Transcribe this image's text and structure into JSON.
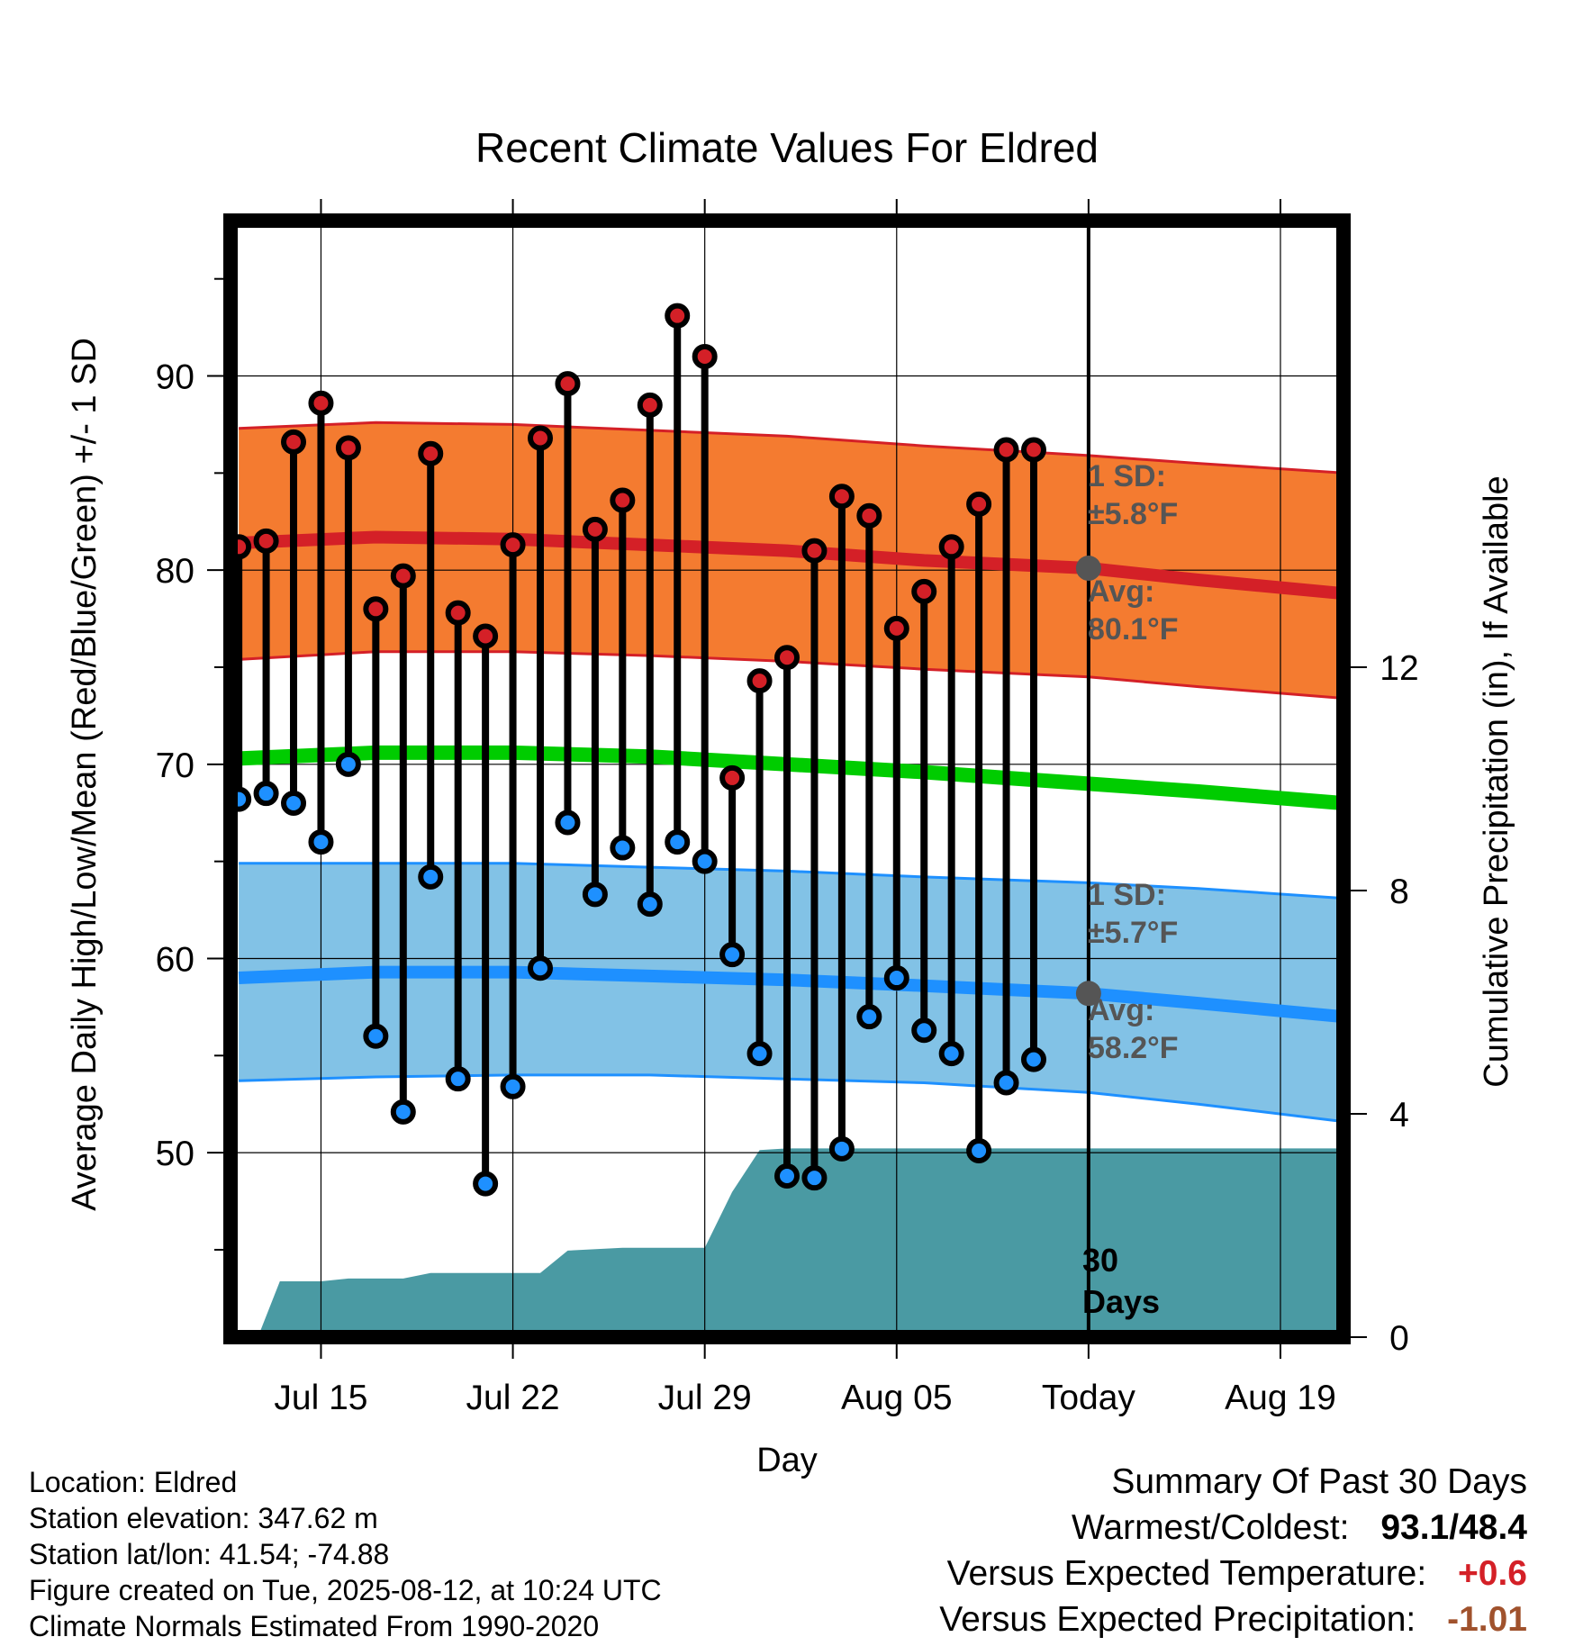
{
  "colors": {
    "high_band": "#f47b30",
    "high_line": "#d42027",
    "low_band": "#82c2e6",
    "low_line": "#1e90ff",
    "mean_line": "#00cc00",
    "precip_fill": "#4a9aa3",
    "high_dot": "#d42027",
    "low_dot": "#1e90ff",
    "avg_marker": "#555555",
    "annotation_text": "#555555",
    "positive_temp": "#d42027",
    "negative_precip": "#a0522d"
  },
  "chart_data": {
    "type": "line",
    "title": "Recent Climate Values For Eldred",
    "xlabel": "Day",
    "ylabel": "Average Daily High/Low/Mean (Red/Blue/Green) +/- 1 SD",
    "y2label": "Cumulative Precipitation (in), If Available",
    "x_ticks": [
      {
        "label": "Jul 15",
        "day": 3
      },
      {
        "label": "Jul 22",
        "day": 10
      },
      {
        "label": "Jul 29",
        "day": 17
      },
      {
        "label": "Aug 05",
        "day": 24
      },
      {
        "label": "Today",
        "day": 31
      },
      {
        "label": "Aug 19",
        "day": 38
      }
    ],
    "xlim": [
      -0.3,
      40.3
    ],
    "ylim": [
      40.5,
      98
    ],
    "y_ticks": [
      50,
      60,
      70,
      80,
      90
    ],
    "y2lim": [
      0,
      20
    ],
    "y2_ticks": [
      0,
      4,
      8,
      12
    ],
    "grid": true,
    "today_day": 31,
    "days": [
      0,
      1,
      2,
      3,
      4,
      5,
      6,
      7,
      8,
      9,
      10,
      11,
      12,
      13,
      14,
      15,
      16,
      17,
      18,
      19,
      20,
      21,
      22,
      23,
      24,
      25,
      26,
      27,
      28,
      29,
      30
    ],
    "highs": [
      81.2,
      81.5,
      86.6,
      88.6,
      86.3,
      78.0,
      79.7,
      86.0,
      77.8,
      76.6,
      81.3,
      86.8,
      89.6,
      82.1,
      83.6,
      88.5,
      93.1,
      91.0,
      69.3,
      74.3,
      75.5,
      81.0,
      83.8,
      82.8,
      77.0,
      78.9,
      81.2,
      83.4,
      86.2,
      86.2,
      null
    ],
    "lows": [
      68.2,
      68.5,
      68.0,
      66.0,
      70.0,
      56.0,
      52.1,
      64.2,
      53.8,
      48.4,
      53.4,
      59.5,
      67.0,
      63.3,
      65.7,
      62.8,
      66.0,
      65.0,
      60.2,
      55.1,
      48.8,
      48.7,
      50.2,
      57.0,
      59.0,
      56.3,
      55.1,
      50.1,
      53.6,
      54.8,
      null
    ],
    "normals": {
      "high_avg": [
        [
          0,
          81.4
        ],
        [
          5,
          81.7
        ],
        [
          10,
          81.6
        ],
        [
          15,
          81.3
        ],
        [
          20,
          81.0
        ],
        [
          25,
          80.5
        ],
        [
          31,
          80.1
        ],
        [
          35,
          79.5
        ],
        [
          40.3,
          78.8
        ]
      ],
      "high_upper": [
        [
          0,
          87.3
        ],
        [
          5,
          87.6
        ],
        [
          10,
          87.5
        ],
        [
          15,
          87.2
        ],
        [
          20,
          86.9
        ],
        [
          25,
          86.4
        ],
        [
          31,
          85.9
        ],
        [
          35,
          85.5
        ],
        [
          40.3,
          85.0
        ]
      ],
      "high_lower": [
        [
          0,
          75.4
        ],
        [
          5,
          75.8
        ],
        [
          10,
          75.8
        ],
        [
          15,
          75.6
        ],
        [
          20,
          75.3
        ],
        [
          25,
          74.9
        ],
        [
          31,
          74.5
        ],
        [
          35,
          74.0
        ],
        [
          40.3,
          73.4
        ]
      ],
      "mean": [
        [
          0,
          70.3
        ],
        [
          5,
          70.6
        ],
        [
          10,
          70.6
        ],
        [
          15,
          70.4
        ],
        [
          20,
          70.0
        ],
        [
          25,
          69.6
        ],
        [
          31,
          69.0
        ],
        [
          35,
          68.6
        ],
        [
          40.3,
          68.0
        ]
      ],
      "low_avg": [
        [
          0,
          59.0
        ],
        [
          5,
          59.3
        ],
        [
          10,
          59.3
        ],
        [
          15,
          59.1
        ],
        [
          20,
          58.9
        ],
        [
          25,
          58.6
        ],
        [
          31,
          58.2
        ],
        [
          35,
          57.7
        ],
        [
          40.3,
          57.0
        ]
      ],
      "low_upper": [
        [
          0,
          64.9
        ],
        [
          5,
          64.9
        ],
        [
          10,
          64.9
        ],
        [
          15,
          64.7
        ],
        [
          20,
          64.5
        ],
        [
          25,
          64.2
        ],
        [
          31,
          63.9
        ],
        [
          35,
          63.6
        ],
        [
          40.3,
          63.1
        ]
      ],
      "low_lower": [
        [
          0,
          53.7
        ],
        [
          5,
          53.9
        ],
        [
          10,
          54.0
        ],
        [
          15,
          54.0
        ],
        [
          20,
          53.8
        ],
        [
          25,
          53.6
        ],
        [
          31,
          53.1
        ],
        [
          35,
          52.5
        ],
        [
          40.3,
          51.6
        ]
      ]
    },
    "precip_cumulative": [
      [
        0,
        0
      ],
      [
        0.7,
        0
      ],
      [
        1.5,
        1.0
      ],
      [
        3,
        1.0
      ],
      [
        4,
        1.05
      ],
      [
        6,
        1.05
      ],
      [
        7,
        1.15
      ],
      [
        9,
        1.15
      ],
      [
        11,
        1.15
      ],
      [
        12,
        1.55
      ],
      [
        14,
        1.6
      ],
      [
        17,
        1.6
      ],
      [
        18,
        2.6
      ],
      [
        19,
        3.35
      ],
      [
        20,
        3.38
      ],
      [
        21,
        3.38
      ],
      [
        31,
        3.38
      ],
      [
        40.3,
        3.38
      ]
    ],
    "annotations": {
      "high_sd_label": "1 SD:",
      "high_sd_value": "±5.8°F",
      "high_avg_label": "Avg:",
      "high_avg_value": "80.1°F",
      "low_sd_label": "1 SD:",
      "low_sd_value": "±5.7°F",
      "low_avg_label": "Avg:",
      "low_avg_value": "58.2°F",
      "days_number": "30",
      "days_word": "Days"
    },
    "today_avg_high": 80.1,
    "today_avg_low": 58.2
  },
  "footer": {
    "location": "Location: Eldred",
    "elevation": "Station elevation: 347.62 m",
    "latlon": "Station lat/lon: 41.54; -74.88",
    "created": "Figure created on Tue, 2025-08-12, at 10:24 UTC",
    "normals": "Climate Normals Estimated From 1990-2020"
  },
  "summary": {
    "heading": "Summary Of Past 30 Days",
    "warmest_coldest_label": "Warmest/Coldest:",
    "warmest": "93.1",
    "separator": "/",
    "coldest": "48.4",
    "temp_label": "Versus Expected Temperature:",
    "temp_value": "+0.6",
    "precip_label": "Versus Expected Precipitation:",
    "precip_value": "-1.01"
  }
}
